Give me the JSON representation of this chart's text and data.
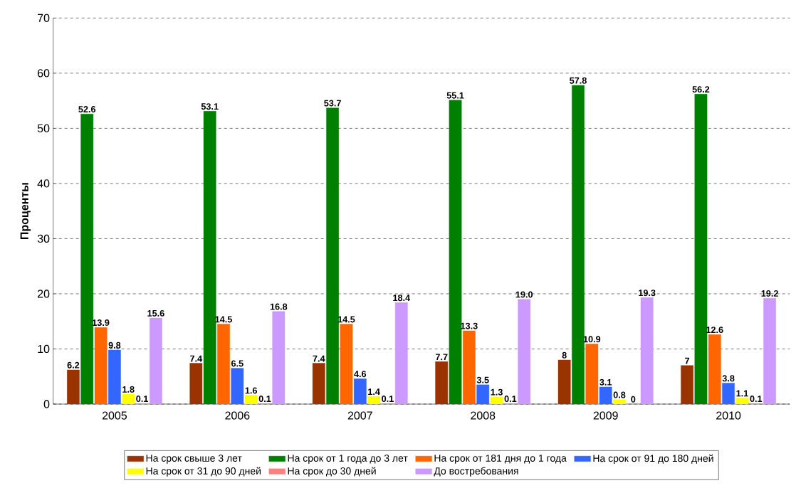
{
  "chart_data": {
    "type": "bar",
    "ylabel": "Проценты",
    "categories": [
      "2005",
      "2006",
      "2007",
      "2008",
      "2009",
      "2010"
    ],
    "series": [
      {
        "name": "На срок свыше 3 лет",
        "color": "#993300",
        "values": [
          6.2,
          7.4,
          7.4,
          7.7,
          8,
          7
        ],
        "value_labels": [
          "6.2",
          "7.4",
          "7.4",
          "7.7",
          "8",
          "7"
        ]
      },
      {
        "name": "На срок от 1 года до 3 лет",
        "color": "#008000",
        "values": [
          52.6,
          53.1,
          53.7,
          55.1,
          57.8,
          56.2
        ],
        "value_labels": [
          "52.6",
          "53.1",
          "53.7",
          "55.1",
          "57.8",
          "56.2"
        ]
      },
      {
        "name": "На срок от 181 дня до 1 года",
        "color": "#ff6600",
        "values": [
          13.9,
          14.5,
          14.5,
          13.3,
          10.9,
          12.6
        ],
        "value_labels": [
          "13.9",
          "14.5",
          "14.5",
          "13.3",
          "10.9",
          "12.6"
        ]
      },
      {
        "name": "На срок от 91 до 180 дней",
        "color": "#3366ff",
        "values": [
          9.8,
          6.5,
          4.6,
          3.5,
          3.1,
          3.8
        ],
        "value_labels": [
          "9.8",
          "6.5",
          "4.6",
          "3.5",
          "3.1",
          "3.8"
        ]
      },
      {
        "name": "На срок от 31 до 90 дней",
        "color": "#ffff00",
        "values": [
          1.8,
          1.6,
          1.4,
          1.3,
          0.8,
          1.1
        ],
        "value_labels": [
          "1.8",
          "1.6",
          "1.4",
          "1.3",
          "0.8",
          "1.1"
        ]
      },
      {
        "name": "На срок до 30 дней",
        "color": "#ff8080",
        "values": [
          0.1,
          0.1,
          0.1,
          0.1,
          0,
          0.1
        ],
        "value_labels": [
          "0.1",
          "0.1",
          "0.1",
          "0.1",
          "0",
          "0.1"
        ]
      },
      {
        "name": "До востребования",
        "color": "#cc99ff",
        "values": [
          15.6,
          16.8,
          18.4,
          19.0,
          19.3,
          19.2
        ],
        "value_labels": [
          "15.6",
          "16.8",
          "18.4",
          "19.0",
          "19.3",
          "19.2"
        ]
      }
    ],
    "ylim": [
      0,
      70
    ],
    "yticks": [
      0,
      10,
      20,
      30,
      40,
      50,
      60,
      70
    ],
    "grid": "y",
    "legend": "bottom"
  }
}
